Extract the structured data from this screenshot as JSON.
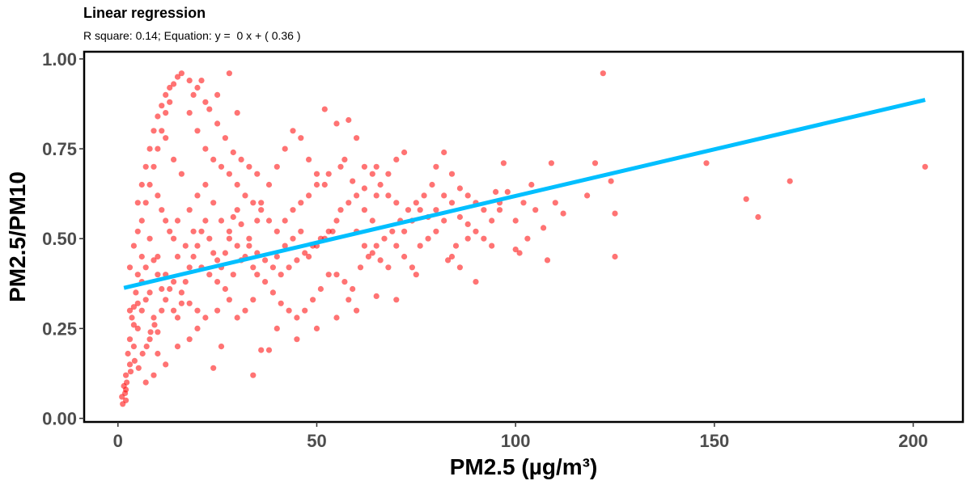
{
  "chart_data": {
    "type": "scatter",
    "title": "Linear regression",
    "subtitle": "R square: 0.14; Equation: y =  0 x + ( 0.36 )",
    "xlabel": "PM2.5 (µg/m³)",
    "ylabel": "PM2.5/PM10",
    "xlim": [
      -8.5,
      212.5
    ],
    "ylim": [
      -0.01,
      1.02
    ],
    "x_ticks": [
      0,
      50,
      100,
      150,
      200
    ],
    "x_tick_labels": [
      "0",
      "50",
      "100",
      "150",
      "200"
    ],
    "y_ticks": [
      0.0,
      0.25,
      0.5,
      0.75,
      1.0
    ],
    "y_tick_labels": [
      "0.00",
      "0.25",
      "0.50",
      "0.75",
      "1.00"
    ],
    "grid": false,
    "point_color": "#ff0000",
    "line_color": "#00bfff",
    "regression_line": {
      "x": [
        1.5,
        203
      ],
      "y": [
        0.363,
        0.886
      ]
    },
    "points": [
      [
        1,
        0.06
      ],
      [
        1.2,
        0.04
      ],
      [
        1.5,
        0.09
      ],
      [
        2,
        0.12
      ],
      [
        2.5,
        0.18
      ],
      [
        3,
        0.22
      ],
      [
        3.5,
        0.28
      ],
      [
        4,
        0.31
      ],
      [
        4.5,
        0.35
      ],
      [
        5,
        0.4
      ],
      [
        2,
        0.08
      ],
      [
        3,
        0.15
      ],
      [
        4,
        0.2
      ],
      [
        5,
        0.25
      ],
      [
        6,
        0.3
      ],
      [
        7,
        0.33
      ],
      [
        3,
        0.42
      ],
      [
        4,
        0.48
      ],
      [
        5,
        0.52
      ],
      [
        6,
        0.45
      ],
      [
        6,
        0.55
      ],
      [
        7,
        0.6
      ],
      [
        8,
        0.65
      ],
      [
        9,
        0.7
      ],
      [
        10,
        0.75
      ],
      [
        11,
        0.8
      ],
      [
        12,
        0.85
      ],
      [
        13,
        0.88
      ],
      [
        14,
        0.93
      ],
      [
        15,
        0.95
      ],
      [
        16,
        0.96
      ],
      [
        18,
        0.94
      ],
      [
        20,
        0.92
      ],
      [
        22,
        0.88
      ],
      [
        25,
        0.9
      ],
      [
        28,
        0.96
      ],
      [
        30,
        0.85
      ],
      [
        12,
        0.78
      ],
      [
        14,
        0.72
      ],
      [
        16,
        0.68
      ],
      [
        8,
        0.5
      ],
      [
        10,
        0.45
      ],
      [
        12,
        0.4
      ],
      [
        14,
        0.38
      ],
      [
        16,
        0.35
      ],
      [
        18,
        0.32
      ],
      [
        20,
        0.3
      ],
      [
        8,
        0.22
      ],
      [
        10,
        0.18
      ],
      [
        12,
        0.15
      ],
      [
        9,
        0.12
      ],
      [
        7,
        0.1
      ],
      [
        15,
        0.2
      ],
      [
        18,
        0.22
      ],
      [
        20,
        0.25
      ],
      [
        22,
        0.28
      ],
      [
        25,
        0.3
      ],
      [
        28,
        0.33
      ],
      [
        24,
        0.14
      ],
      [
        26,
        0.2
      ],
      [
        15,
        0.55
      ],
      [
        18,
        0.58
      ],
      [
        20,
        0.62
      ],
      [
        22,
        0.65
      ],
      [
        24,
        0.6
      ],
      [
        26,
        0.55
      ],
      [
        28,
        0.5
      ],
      [
        30,
        0.48
      ],
      [
        32,
        0.45
      ],
      [
        34,
        0.42
      ],
      [
        15,
        0.45
      ],
      [
        17,
        0.48
      ],
      [
        19,
        0.52
      ],
      [
        21,
        0.42
      ],
      [
        23,
        0.4
      ],
      [
        25,
        0.38
      ],
      [
        27,
        0.36
      ],
      [
        29,
        0.4
      ],
      [
        31,
        0.44
      ],
      [
        33,
        0.5
      ],
      [
        35,
        0.55
      ],
      [
        36,
        0.6
      ],
      [
        38,
        0.65
      ],
      [
        40,
        0.7
      ],
      [
        42,
        0.75
      ],
      [
        44,
        0.8
      ],
      [
        46,
        0.78
      ],
      [
        48,
        0.72
      ],
      [
        50,
        0.68
      ],
      [
        52,
        0.65
      ],
      [
        35,
        0.4
      ],
      [
        37,
        0.38
      ],
      [
        39,
        0.35
      ],
      [
        41,
        0.32
      ],
      [
        43,
        0.3
      ],
      [
        45,
        0.28
      ],
      [
        47,
        0.3
      ],
      [
        49,
        0.33
      ],
      [
        51,
        0.36
      ],
      [
        53,
        0.4
      ],
      [
        36,
        0.19
      ],
      [
        38,
        0.19
      ],
      [
        34,
        0.12
      ],
      [
        30,
        0.28
      ],
      [
        32,
        0.3
      ],
      [
        34,
        0.33
      ],
      [
        40,
        0.45
      ],
      [
        42,
        0.48
      ],
      [
        44,
        0.5
      ],
      [
        46,
        0.52
      ],
      [
        48,
        0.45
      ],
      [
        50,
        0.48
      ],
      [
        52,
        0.5
      ],
      [
        54,
        0.52
      ],
      [
        55,
        0.55
      ],
      [
        56,
        0.58
      ],
      [
        58,
        0.6
      ],
      [
        60,
        0.62
      ],
      [
        62,
        0.58
      ],
      [
        64,
        0.55
      ],
      [
        52,
        0.86
      ],
      [
        55,
        0.82
      ],
      [
        58,
        0.83
      ],
      [
        60,
        0.78
      ],
      [
        57,
        0.72
      ],
      [
        62,
        0.7
      ],
      [
        64,
        0.68
      ],
      [
        66,
        0.65
      ],
      [
        68,
        0.62
      ],
      [
        70,
        0.6
      ],
      [
        55,
        0.4
      ],
      [
        57,
        0.38
      ],
      [
        59,
        0.36
      ],
      [
        61,
        0.42
      ],
      [
        63,
        0.45
      ],
      [
        65,
        0.48
      ],
      [
        67,
        0.5
      ],
      [
        69,
        0.52
      ],
      [
        71,
        0.55
      ],
      [
        73,
        0.58
      ],
      [
        75,
        0.6
      ],
      [
        77,
        0.62
      ],
      [
        79,
        0.65
      ],
      [
        80,
        0.7
      ],
      [
        82,
        0.74
      ],
      [
        84,
        0.68
      ],
      [
        86,
        0.64
      ],
      [
        88,
        0.62
      ],
      [
        90,
        0.6
      ],
      [
        92,
        0.58
      ],
      [
        72,
        0.45
      ],
      [
        74,
        0.42
      ],
      [
        76,
        0.48
      ],
      [
        78,
        0.5
      ],
      [
        80,
        0.52
      ],
      [
        82,
        0.55
      ],
      [
        84,
        0.45
      ],
      [
        86,
        0.42
      ],
      [
        88,
        0.5
      ],
      [
        90,
        0.38
      ],
      [
        65,
        0.34
      ],
      [
        70,
        0.33
      ],
      [
        60,
        0.3
      ],
      [
        58,
        0.33
      ],
      [
        75,
        0.4
      ],
      [
        95,
        0.63
      ],
      [
        96,
        0.6
      ],
      [
        98,
        0.63
      ],
      [
        100,
        0.55
      ],
      [
        102,
        0.6
      ],
      [
        100,
        0.47
      ],
      [
        101,
        0.46
      ],
      [
        103,
        0.5
      ],
      [
        105,
        0.58
      ],
      [
        107,
        0.53
      ],
      [
        108,
        0.44
      ],
      [
        110,
        0.6
      ],
      [
        112,
        0.57
      ],
      [
        96,
        0.58
      ],
      [
        94,
        0.55
      ],
      [
        97,
        0.71
      ],
      [
        104,
        0.65
      ],
      [
        109,
        0.71
      ],
      [
        118,
        0.62
      ],
      [
        120,
        0.71
      ],
      [
        122,
        0.96
      ],
      [
        124,
        0.66
      ],
      [
        125,
        0.57
      ],
      [
        125,
        0.45
      ],
      [
        148,
        0.71
      ],
      [
        158,
        0.61
      ],
      [
        161,
        0.56
      ],
      [
        169,
        0.66
      ],
      [
        203,
        0.7
      ],
      [
        70,
        0.72
      ],
      [
        72,
        0.74
      ],
      [
        65,
        0.7
      ],
      [
        68,
        0.68
      ],
      [
        55,
        0.28
      ],
      [
        50,
        0.25
      ],
      [
        45,
        0.22
      ],
      [
        40,
        0.25
      ],
      [
        10,
        0.62
      ],
      [
        11,
        0.58
      ],
      [
        12,
        0.55
      ],
      [
        13,
        0.52
      ],
      [
        14,
        0.5
      ],
      [
        9,
        0.44
      ],
      [
        10,
        0.4
      ],
      [
        11,
        0.36
      ],
      [
        5,
        0.6
      ],
      [
        6,
        0.65
      ],
      [
        7,
        0.7
      ],
      [
        8,
        0.75
      ],
      [
        9,
        0.8
      ],
      [
        10,
        0.84
      ],
      [
        11,
        0.87
      ],
      [
        12,
        0.9
      ],
      [
        13,
        0.92
      ],
      [
        20,
        0.8
      ],
      [
        22,
        0.75
      ],
      [
        24,
        0.72
      ],
      [
        26,
        0.7
      ],
      [
        28,
        0.68
      ],
      [
        30,
        0.65
      ],
      [
        32,
        0.62
      ],
      [
        34,
        0.6
      ],
      [
        36,
        0.58
      ],
      [
        38,
        0.55
      ],
      [
        40,
        0.52
      ],
      [
        42,
        0.55
      ],
      [
        44,
        0.58
      ],
      [
        46,
        0.6
      ],
      [
        48,
        0.62
      ],
      [
        50,
        0.65
      ],
      [
        53,
        0.68
      ],
      [
        56,
        0.7
      ],
      [
        59,
        0.66
      ],
      [
        62,
        0.64
      ],
      [
        65,
        0.62
      ],
      [
        3,
        0.3
      ],
      [
        4,
        0.26
      ],
      [
        5,
        0.32
      ],
      [
        6,
        0.38
      ],
      [
        7,
        0.42
      ],
      [
        8,
        0.35
      ],
      [
        9,
        0.28
      ],
      [
        10,
        0.24
      ],
      [
        11,
        0.3
      ],
      [
        12,
        0.33
      ],
      [
        13,
        0.36
      ],
      [
        14,
        0.3
      ],
      [
        15,
        0.28
      ],
      [
        16,
        0.32
      ],
      [
        17,
        0.38
      ],
      [
        18,
        0.42
      ],
      [
        19,
        0.45
      ],
      [
        20,
        0.48
      ],
      [
        21,
        0.52
      ],
      [
        22,
        0.55
      ],
      [
        23,
        0.5
      ],
      [
        24,
        0.46
      ],
      [
        25,
        0.44
      ],
      [
        26,
        0.42
      ],
      [
        27,
        0.46
      ],
      [
        28,
        0.52
      ],
      [
        29,
        0.56
      ],
      [
        30,
        0.58
      ],
      [
        31,
        0.54
      ],
      [
        33,
        0.48
      ],
      [
        35,
        0.46
      ],
      [
        37,
        0.44
      ],
      [
        39,
        0.42
      ],
      [
        41,
        0.4
      ],
      [
        43,
        0.42
      ],
      [
        45,
        0.44
      ],
      [
        47,
        0.46
      ],
      [
        49,
        0.48
      ],
      [
        51,
        0.5
      ],
      [
        53,
        0.52
      ],
      [
        2,
        0.05
      ],
      [
        1.8,
        0.07
      ],
      [
        2.2,
        0.1
      ],
      [
        3.2,
        0.13
      ],
      [
        4.2,
        0.16
      ],
      [
        5.2,
        0.14
      ],
      [
        6.2,
        0.18
      ],
      [
        7.2,
        0.2
      ],
      [
        8.2,
        0.24
      ],
      [
        9.2,
        0.26
      ],
      [
        18,
        0.85
      ],
      [
        19,
        0.9
      ],
      [
        21,
        0.94
      ],
      [
        23,
        0.86
      ],
      [
        25,
        0.82
      ],
      [
        27,
        0.78
      ],
      [
        29,
        0.74
      ],
      [
        31,
        0.72
      ],
      [
        33,
        0.7
      ],
      [
        35,
        0.68
      ],
      [
        60,
        0.52
      ],
      [
        62,
        0.48
      ],
      [
        64,
        0.46
      ],
      [
        66,
        0.44
      ],
      [
        68,
        0.42
      ],
      [
        70,
        0.48
      ],
      [
        72,
        0.52
      ],
      [
        74,
        0.55
      ],
      [
        76,
        0.58
      ],
      [
        78,
        0.56
      ],
      [
        80,
        0.58
      ],
      [
        82,
        0.62
      ],
      [
        84,
        0.6
      ],
      [
        86,
        0.56
      ],
      [
        88,
        0.54
      ],
      [
        90,
        0.52
      ],
      [
        92,
        0.5
      ],
      [
        94,
        0.48
      ],
      [
        85,
        0.48
      ],
      [
        83,
        0.44
      ]
    ]
  }
}
